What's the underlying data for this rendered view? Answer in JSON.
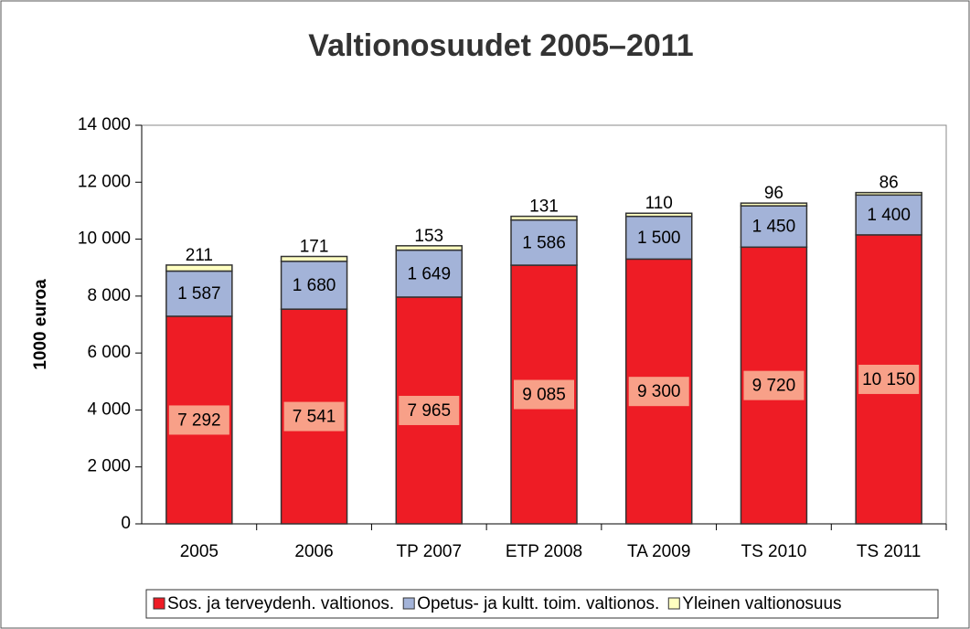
{
  "chart_data": {
    "type": "stacked-bar",
    "title": "Valtionosuudet 2005–2011",
    "y_label": "1000 euroa",
    "categories": [
      "2005",
      "2006",
      "TP 2007",
      "ETP 2008",
      "TA 2009",
      "TS 2010",
      "TS 2011"
    ],
    "series": [
      {
        "name": "Sos. ja terveydenh. valtionos.",
        "color": "#ee1c25",
        "values": [
          7292,
          7541,
          7965,
          9085,
          9300,
          9720,
          10150
        ],
        "value_labels": [
          "7 292",
          "7 541",
          "7 965",
          "9 085",
          "9 300",
          "9 720",
          "10 150"
        ]
      },
      {
        "name": "Opetus- ja kultt. toim. valtionos.",
        "color": "#a3b3d8",
        "values": [
          1587,
          1680,
          1649,
          1586,
          1500,
          1450,
          1400
        ],
        "value_labels": [
          "1 587",
          "1 680",
          "1 649",
          "1 586",
          "1 500",
          "1 450",
          "1 400"
        ]
      },
      {
        "name": "Yleinen valtionosuus",
        "color": "#ffffc0",
        "values": [
          211,
          171,
          153,
          131,
          110,
          96,
          86
        ]
      }
    ],
    "ylim": [
      0,
      14000
    ],
    "yticks": [
      0,
      {
        "value": 2000,
        "label": "2 000"
      },
      {
        "value": 4000,
        "label": "4 000"
      },
      {
        "value": 6000,
        "label": "6 000"
      },
      {
        "value": 8000,
        "label": "8 000"
      },
      {
        "value": 10000,
        "label": "10 000"
      },
      {
        "value": 12000,
        "label": "12 000"
      },
      {
        "value": 14000,
        "label": "14 000"
      }
    ],
    "legend": "bottom"
  }
}
